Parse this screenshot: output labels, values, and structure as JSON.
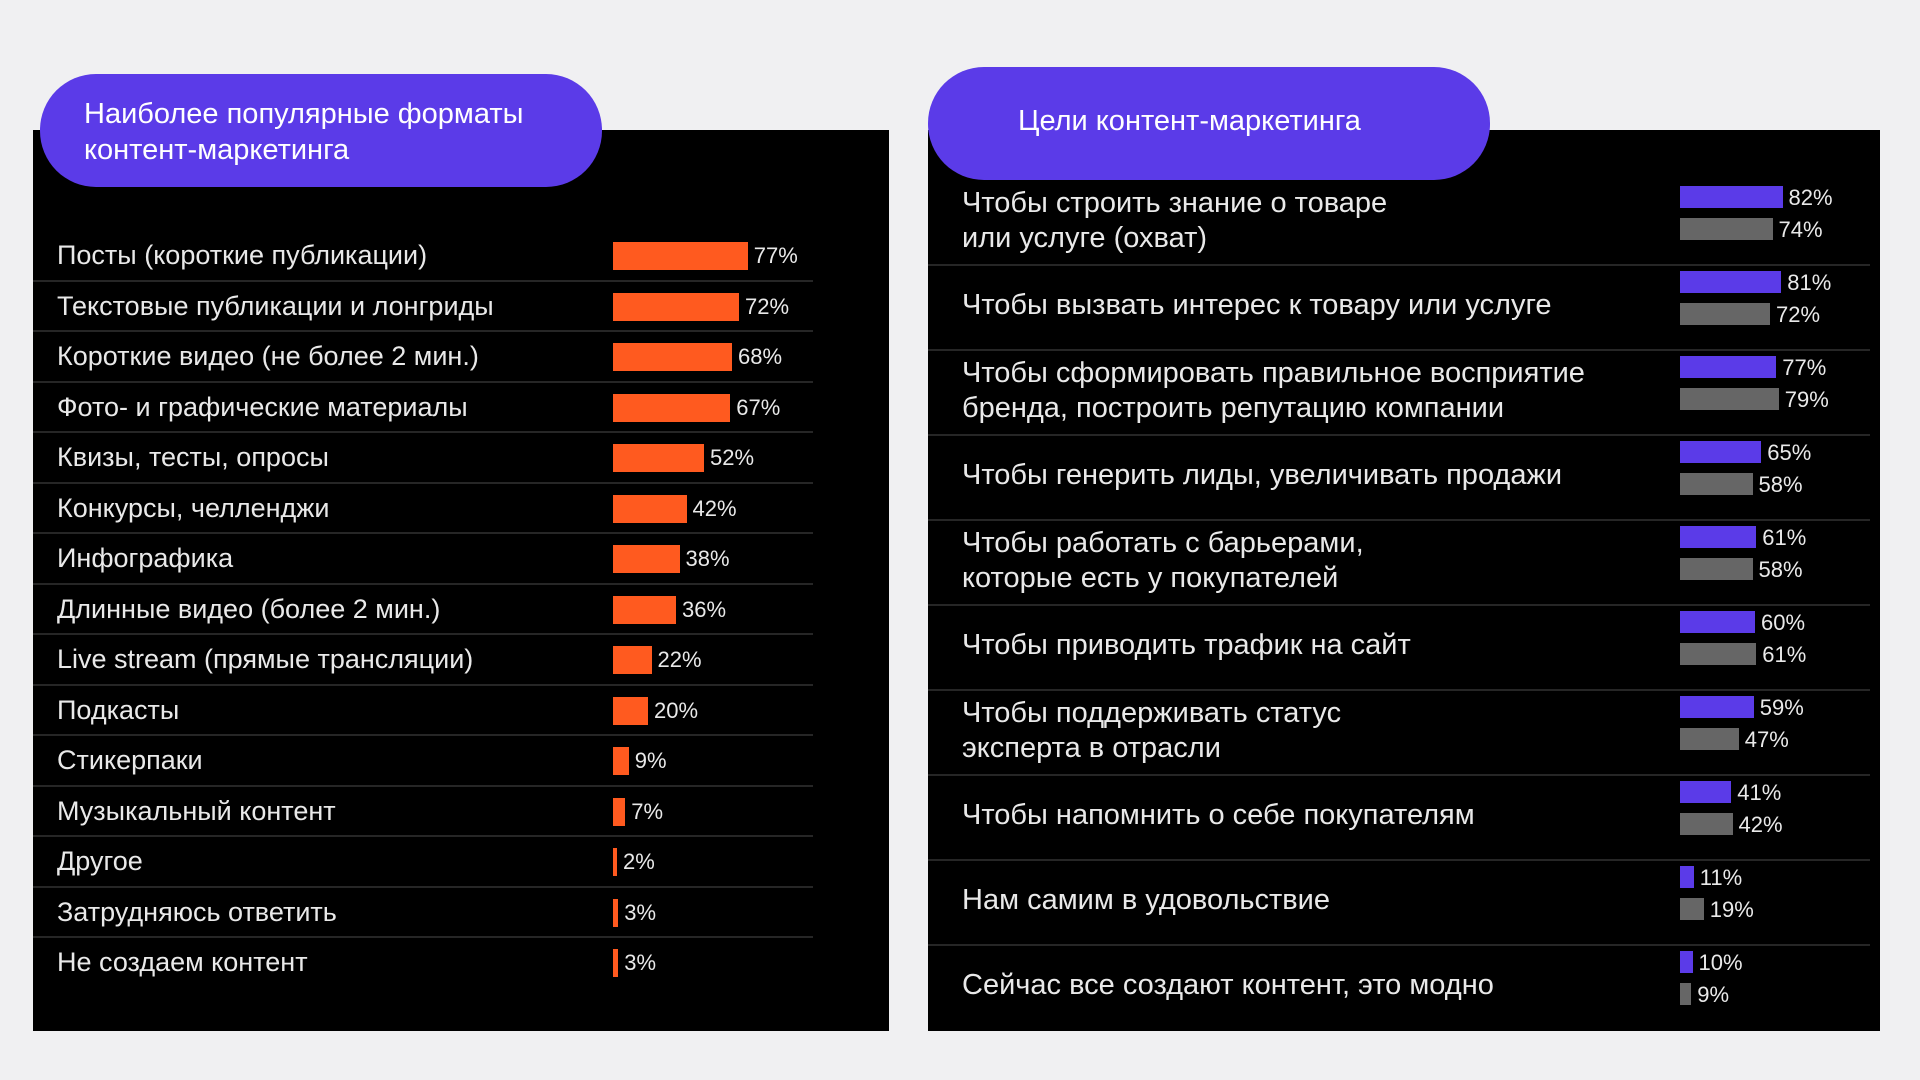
{
  "colors": {
    "background": "#f0f0f2",
    "panel": "#000000",
    "pill": "#5b3be8",
    "bar_formats": "#ff5a1f",
    "bar_goals_series1": "#5b3be8",
    "bar_goals_series2": "#666666",
    "text": "#e9e9e9"
  },
  "left": {
    "title_line1": "Наиболее популярные форматы",
    "title_line2": "контент-маркетинга"
  },
  "right": {
    "title": "Цели контент-маркетинга"
  },
  "chart_data": [
    {
      "type": "bar",
      "orientation": "horizontal",
      "title": "Наиболее популярные форматы контент-маркетинга",
      "categories": [
        "Посты (короткие публикации)",
        "Текстовые публикации и лонгриды",
        "Короткие видео (не более 2 мин.)",
        "Фото- и графические материалы",
        "Квизы, тесты, опросы",
        "Конкурсы, челленджи",
        "Инфографика",
        "Длинные видео (более 2 мин.)",
        "Live stream (прямые трансляции)",
        "Подкасты",
        "Стикерпаки",
        "Музыкальный контент",
        "Другое",
        "Затрудняюсь ответить",
        "Не создаем контент"
      ],
      "values": [
        77,
        72,
        68,
        67,
        52,
        42,
        38,
        36,
        22,
        20,
        9,
        7,
        2,
        3,
        3
      ],
      "value_labels": [
        "77%",
        "72%",
        "68%",
        "67%",
        "52%",
        "42%",
        "38%",
        "36%",
        "22%",
        "20%",
        "9%",
        "7%",
        "2%",
        "3%",
        "3%"
      ],
      "unit": "%",
      "xlim": [
        0,
        100
      ],
      "legend": "none",
      "grid": false
    },
    {
      "type": "bar",
      "orientation": "horizontal",
      "title": "Цели контент-маркетинга",
      "categories": [
        [
          "Чтобы строить знание о товаре",
          "или услуге (охват)"
        ],
        [
          "Чтобы вызвать интерес к товару или услуге"
        ],
        [
          "Чтобы сформировать правильное восприятие",
          "бренда, построить репутацию компании"
        ],
        [
          "Чтобы генерить лиды, увеличивать продажи"
        ],
        [
          "Чтобы работать с барьерами,",
          "которые есть у покупателей"
        ],
        [
          "Чтобы приводить трафик на сайт"
        ],
        [
          "Чтобы поддерживать статус",
          "эксперта в отрасли"
        ],
        [
          "Чтобы напомнить о себе покупателям"
        ],
        [
          "Нам самим в удовольствие"
        ],
        [
          "Сейчас все создают контент, это модно"
        ]
      ],
      "series": [
        {
          "values": [
            82,
            81,
            77,
            65,
            61,
            60,
            59,
            41,
            11,
            10
          ],
          "value_labels": [
            "82%",
            "81%",
            "77%",
            "65%",
            "61%",
            "60%",
            "59%",
            "41%",
            "11%",
            "10%"
          ]
        },
        {
          "values": [
            74,
            72,
            79,
            58,
            58,
            61,
            47,
            42,
            19,
            9
          ],
          "value_labels": [
            "74%",
            "72%",
            "79%",
            "58%",
            "58%",
            "61%",
            "47%",
            "42%",
            "19%",
            "9%"
          ]
        }
      ],
      "unit": "%",
      "xlim": [
        0,
        100
      ],
      "legend": "none",
      "grid": false
    }
  ]
}
